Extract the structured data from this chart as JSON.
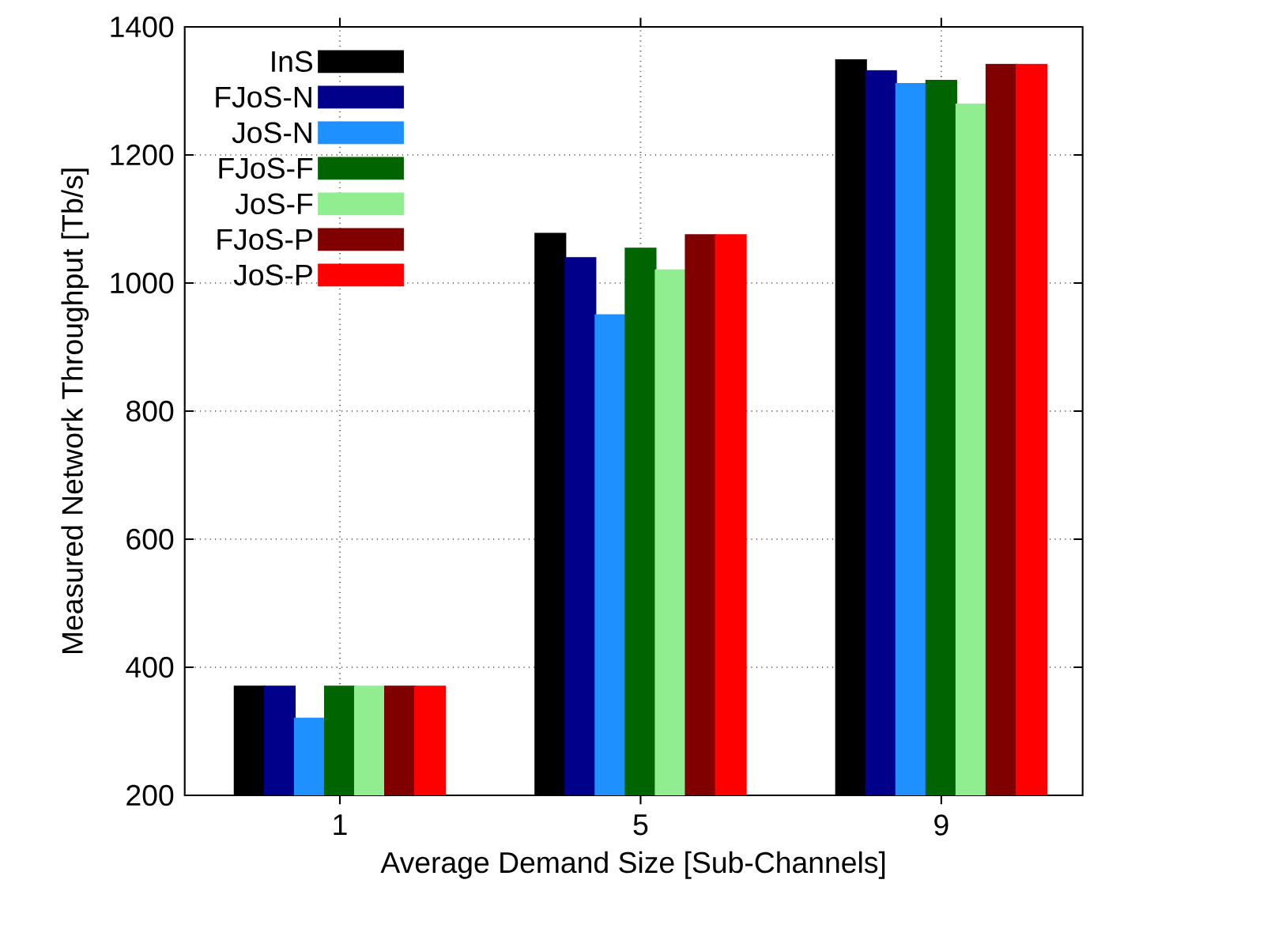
{
  "chart_data": {
    "type": "bar",
    "xlabel": "Average Demand Size [Sub-Channels]",
    "ylabel": "Measured Network Throughput [Tb/s]",
    "categories": [
      "1",
      "5",
      "9"
    ],
    "series": [
      {
        "name": "InS",
        "color": "#000000",
        "values": [
          370,
          1077,
          1348
        ]
      },
      {
        "name": "FJoS-N",
        "color": "#00008b",
        "values": [
          370,
          1039,
          1331
        ]
      },
      {
        "name": "JoS-N",
        "color": "#1e90ff",
        "values": [
          320,
          950,
          1311
        ]
      },
      {
        "name": "FJoS-F",
        "color": "#006400",
        "values": [
          370,
          1054,
          1316
        ]
      },
      {
        "name": "JoS-F",
        "color": "#90ee90",
        "values": [
          370,
          1020,
          1279
        ]
      },
      {
        "name": "FJoS-P",
        "color": "#800000",
        "values": [
          370,
          1075,
          1341
        ]
      },
      {
        "name": "JoS-P",
        "color": "#ff0000",
        "values": [
          370,
          1075,
          1341
        ]
      }
    ],
    "ylim": [
      200,
      1400
    ],
    "yticks": [
      200,
      400,
      600,
      800,
      1000,
      1200,
      1400
    ],
    "grid": true,
    "legend": "top left"
  }
}
